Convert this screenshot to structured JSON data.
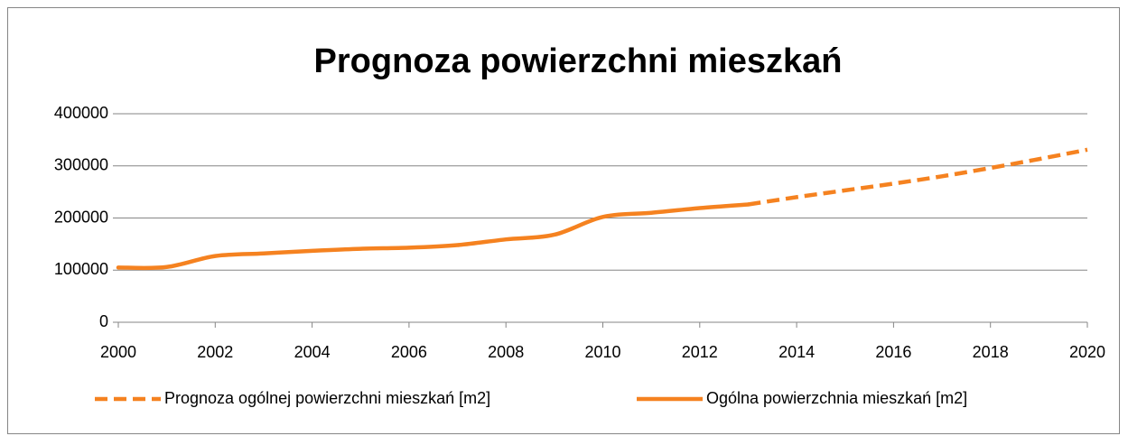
{
  "chart_data": {
    "type": "line",
    "title": "Prognoza powierzchni mieszkań",
    "series": [
      {
        "name": "Prognoza ogólnej powierzchni mieszkań [m2]",
        "color": "#f58220",
        "dashed": true,
        "x": [
          2013,
          2014,
          2015,
          2016,
          2017,
          2018,
          2019,
          2020
        ],
        "values": [
          226000,
          240000,
          253000,
          266000,
          280000,
          296000,
          313000,
          331000
        ]
      },
      {
        "name": "Ogólna powierzchnia mieszkań [m2]",
        "color": "#f58220",
        "dashed": false,
        "x": [
          2000,
          2001,
          2002,
          2003,
          2004,
          2005,
          2006,
          2007,
          2008,
          2009,
          2010,
          2011,
          2012,
          2013
        ],
        "values": [
          105000,
          106000,
          127000,
          132000,
          137000,
          141000,
          143000,
          148000,
          159000,
          168000,
          202000,
          210000,
          219000,
          226000
        ]
      }
    ],
    "xlim": [
      2000,
      2020
    ],
    "xticks": [
      2000,
      2002,
      2004,
      2006,
      2008,
      2010,
      2012,
      2014,
      2016,
      2018,
      2020
    ],
    "ylim": [
      0,
      400000
    ],
    "yticks": [
      0,
      100000,
      200000,
      300000,
      400000
    ],
    "grid": true,
    "legend": "bottom"
  }
}
